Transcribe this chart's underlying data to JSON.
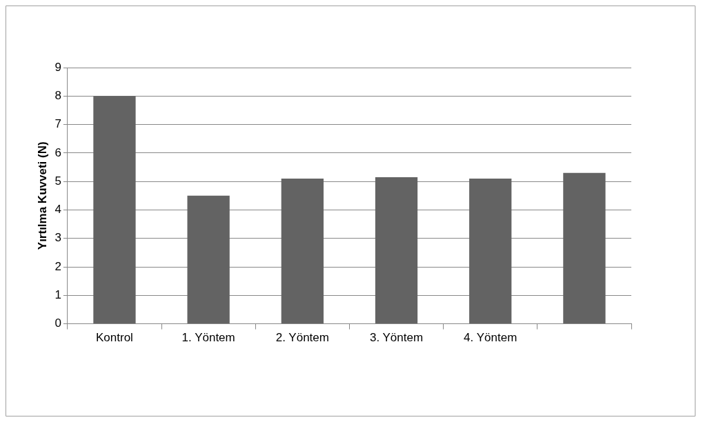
{
  "chart_data": {
    "type": "bar",
    "ylabel": "Yırtılma Kuvveti (N)",
    "categories": [
      "Kontrol",
      "1. Yöntem",
      "2. Yöntem",
      "3. Yöntem",
      "4. Yöntem",
      null
    ],
    "values": [
      8.0,
      4.5,
      5.1,
      5.15,
      5.1,
      5.3
    ],
    "color": "#636363",
    "ylim": [
      0,
      9
    ],
    "yticks": [
      0,
      1,
      2,
      3,
      4,
      5,
      6,
      7,
      8,
      9
    ],
    "grid": "y",
    "legend": false
  }
}
